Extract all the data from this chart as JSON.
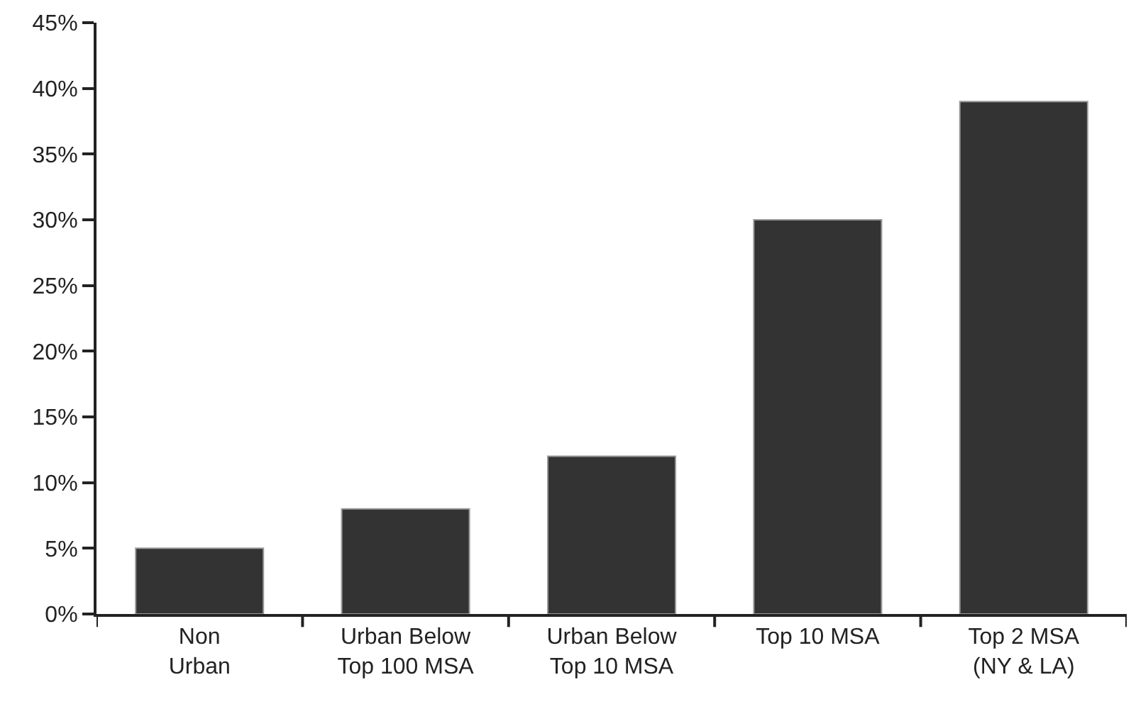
{
  "chart_data": {
    "type": "bar",
    "categories": [
      "Non\nUrban",
      "Urban Below\nTop 100 MSA",
      "Urban Below\nTop 10 MSA",
      "Top 10 MSA",
      "Top 2 MSA\n(NY & LA)"
    ],
    "values": [
      5,
      8,
      12,
      30,
      39
    ],
    "color": "#333333",
    "ylim": [
      0,
      45
    ],
    "yticks": [
      {
        "value": 0,
        "label": "0%"
      },
      {
        "value": 5,
        "label": "5%"
      },
      {
        "value": 10,
        "label": "10%"
      },
      {
        "value": 15,
        "label": "15%"
      },
      {
        "value": 20,
        "label": "20%"
      },
      {
        "value": 25,
        "label": "25%"
      },
      {
        "value": 30,
        "label": "30%"
      },
      {
        "value": 35,
        "label": "35%"
      },
      {
        "value": 40,
        "label": "40%"
      },
      {
        "value": 45,
        "label": "45%"
      }
    ],
    "grid": false
  }
}
